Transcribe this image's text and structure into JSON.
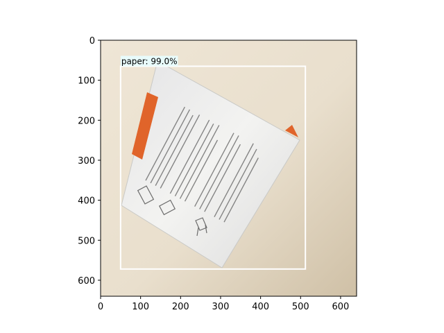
{
  "figure": {
    "x_ticks": [
      "0",
      "100",
      "200",
      "300",
      "400",
      "500",
      "600"
    ],
    "y_ticks": [
      "0",
      "100",
      "200",
      "300",
      "400",
      "500",
      "600"
    ],
    "x_range": [
      0,
      640
    ],
    "y_range": [
      0,
      640
    ],
    "y_inverted": true,
    "grid": false
  },
  "image": {
    "description_name": "photo-of-rotated-paper-instruction-sheet",
    "background_color": "#e6dccb",
    "paper_color": "#eeeeec",
    "accent_color": "#e0642a"
  },
  "detection": {
    "label": "paper: 99.0%",
    "class": "paper",
    "score_percent": 99.0,
    "box": {
      "x_min": 50,
      "y_min": 65,
      "x_max": 512,
      "y_max": 572
    },
    "box_color": "#ffffff",
    "label_bg_color": "#e8fbfb"
  }
}
